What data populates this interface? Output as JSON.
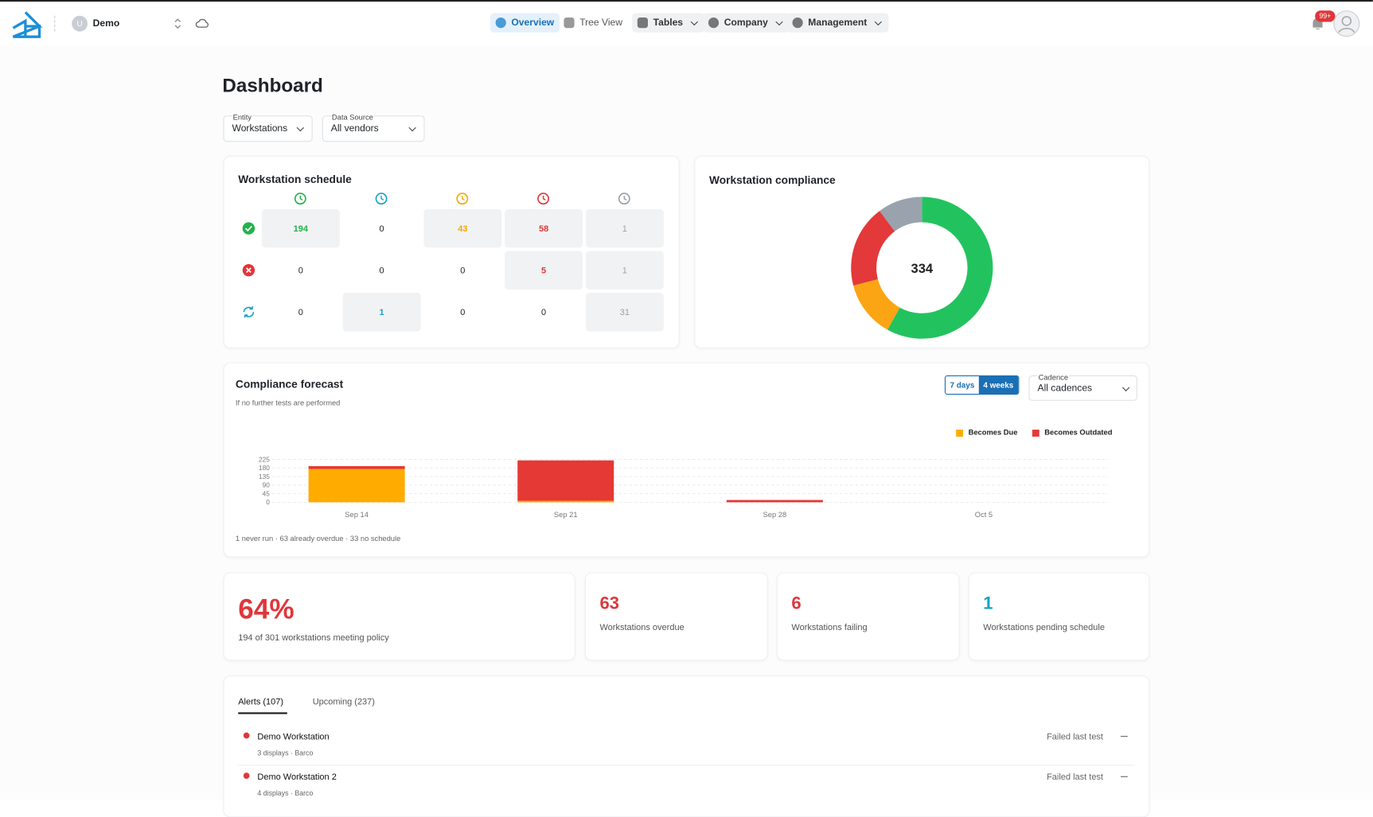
{
  "nav": {
    "org_initial": "U",
    "org": "Demo",
    "items": [
      "Overview",
      "Tree View",
      "Tables",
      "Company",
      "Management"
    ],
    "badge": "99+"
  },
  "page_title": "Dashboard",
  "filters": [
    {
      "label": "Entity",
      "value": "Workstations"
    },
    {
      "label": "Data Source",
      "value": "All vendors"
    }
  ],
  "schedule": {
    "title": "Workstation schedule",
    "column_colors": [
      "#22b14c",
      "#17a2c4",
      "#f5a800",
      "#e0363a",
      "#9aa0a6"
    ],
    "rows": [
      [
        194,
        0,
        43,
        58,
        1
      ],
      [
        0,
        0,
        0,
        5,
        1
      ],
      [
        0,
        1,
        0,
        0,
        31
      ]
    ]
  },
  "compliance": {
    "title": "Workstation compliance",
    "type": "donut",
    "total": 334,
    "values": [
      194,
      43,
      63,
      34
    ],
    "colors": [
      "#22c35e",
      "#fba515",
      "#e3393b",
      "#9aa3ad"
    ]
  },
  "forecast": {
    "title": "Compliance forecast",
    "subtitle": "If no further tests are performed",
    "ranges": [
      "7 days",
      "4 weeks"
    ],
    "active_range": 1,
    "cadence": {
      "label": "Cadence",
      "value": "All cadences"
    },
    "chart_data": {
      "type": "bar",
      "stacked": true,
      "categories": [
        "Sep 14",
        "Sep 21",
        "Sep 28",
        "Oct 5"
      ],
      "series": [
        {
          "name": "Becomes Due",
          "color": "#ffab00",
          "values": [
            175,
            8,
            0,
            0
          ]
        },
        {
          "name": "Becomes Outdated",
          "color": "#e53935",
          "values": [
            15,
            212,
            12,
            0
          ]
        }
      ],
      "ylim": [
        0,
        225
      ],
      "yticks": [
        0,
        45,
        90,
        135,
        180,
        225
      ],
      "grid": true,
      "legend": "top-right"
    },
    "note": "1 never run · 63 already overdue · 33 no schedule"
  },
  "stats": [
    {
      "value": "64%",
      "label": "194 of 301 workstations meeting policy",
      "color": "#e0363a"
    },
    {
      "value": "63",
      "label": "Workstations overdue",
      "color": "#e0363a"
    },
    {
      "value": "6",
      "label": "Workstations failing",
      "color": "#e0363a"
    },
    {
      "value": "1",
      "label": "Workstations pending schedule",
      "color": "#17a2c4"
    }
  ],
  "alerts": {
    "tabs": [
      "Alerts (107)",
      "Upcoming (237)"
    ],
    "items": [
      {
        "name": "Demo Workstation",
        "detail": "3 displays · Barco",
        "status": "Failed last test"
      },
      {
        "name": "Demo Workstation 2",
        "detail": "4 displays · Barco",
        "status": "Failed last test"
      }
    ]
  }
}
